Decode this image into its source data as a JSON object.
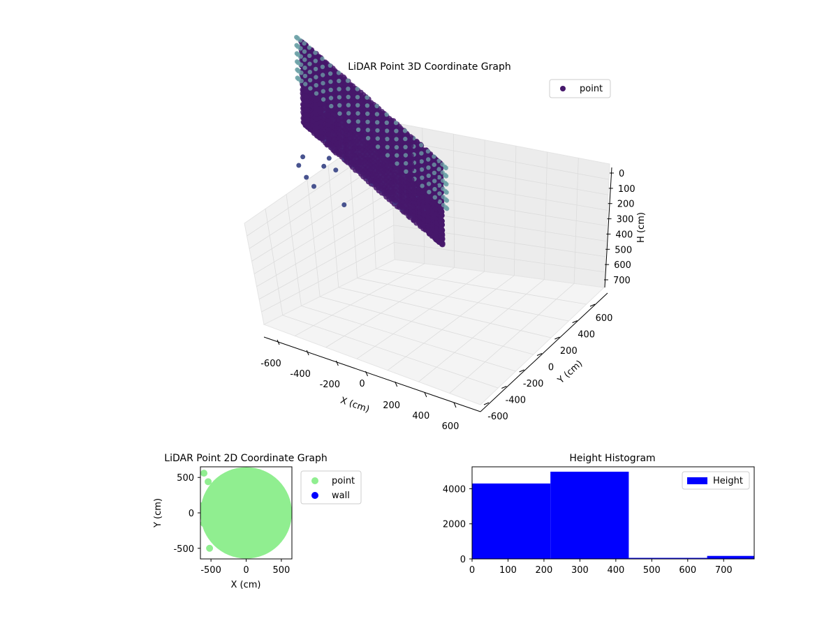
{
  "chart_data": [
    {
      "type": "scatter",
      "title": "LiDAR Point 3D Coordinate Graph",
      "xlabel": "X (cm)",
      "ylabel": "Y (cm)",
      "zlabel": "H (cm)",
      "xticks": [
        "-600",
        "-400",
        "-200",
        "0",
        "200",
        "400",
        "600"
      ],
      "yticks": [
        "-600",
        "-400",
        "-200",
        "0",
        "200",
        "400",
        "600"
      ],
      "zticks": [
        "0",
        "100",
        "200",
        "300",
        "400",
        "500",
        "600",
        "700"
      ],
      "xlim": [
        -650,
        650
      ],
      "ylim": [
        -650,
        650
      ],
      "zlim": [
        0,
        760
      ],
      "z_axis_inverted": true,
      "grid": true,
      "legend": {
        "placement": "upper-right",
        "entries": [
          "point"
        ]
      },
      "colormap": "viridis",
      "series": [
        {
          "name": "point",
          "color": "#46186b",
          "components": {
            "wall_ring": {
              "radius_cm": 600,
              "h_range_cm": [
                0,
                450
              ]
            },
            "outer_posts": {
              "radius_cm": 640,
              "h_range_cm": [
                0,
                250
              ],
              "color": "#6fa3a8"
            },
            "interior_clutter": {
              "radius_range_cm": [
                100,
                450
              ],
              "h_range_cm": [
                100,
                450
              ]
            },
            "outliers": [
              {
                "x": -640,
                "y": -300,
                "h": 640
              },
              {
                "x": -560,
                "y": -400,
                "h": 710
              },
              {
                "x": -520,
                "y": -350,
                "h": 740
              },
              {
                "x": -100,
                "y": -560,
                "h": 760
              },
              {
                "x": 120,
                "y": -600,
                "h": 600
              },
              {
                "x": 360,
                "y": -560,
                "h": 720
              },
              {
                "x": -380,
                "y": -200,
                "h": 520
              },
              {
                "x": 40,
                "y": -420,
                "h": 560
              }
            ]
          }
        }
      ]
    },
    {
      "type": "scatter",
      "title": "LiDAR Point 2D Coordinate Graph",
      "xlabel": "X (cm)",
      "ylabel": "Y (cm)",
      "xticks": [
        "-500",
        "0",
        "500"
      ],
      "yticks": [
        "500",
        "0",
        "-500"
      ],
      "xlim": [
        -650,
        650
      ],
      "ylim": [
        -650,
        650
      ],
      "legend": {
        "placement": "outside-right",
        "entries": [
          "point",
          "wall"
        ]
      },
      "series": [
        {
          "name": "point",
          "color": "#90ee90",
          "shape": "filled disc, radius 650"
        },
        {
          "name": "wall",
          "color": "#0000ff"
        }
      ]
    },
    {
      "type": "bar",
      "title": "Height Histogram",
      "xticks": [
        "0",
        "100",
        "200",
        "300",
        "400",
        "500",
        "600",
        "700"
      ],
      "yticks": [
        "0",
        "2000",
        "4000"
      ],
      "xlim": [
        0,
        785
      ],
      "ylim": [
        0,
        5250
      ],
      "legend": {
        "placement": "upper-right",
        "entries": [
          "Height"
        ]
      },
      "series": [
        {
          "name": "Height",
          "color": "#0000ff",
          "bins": [
            {
              "x0": 0,
              "x1": 218,
              "count": 4300
            },
            {
              "x0": 218,
              "x1": 436,
              "count": 4970
            },
            {
              "x0": 436,
              "x1": 654,
              "count": 60
            },
            {
              "x0": 654,
              "x1": 785,
              "count": 170
            }
          ]
        }
      ]
    }
  ]
}
